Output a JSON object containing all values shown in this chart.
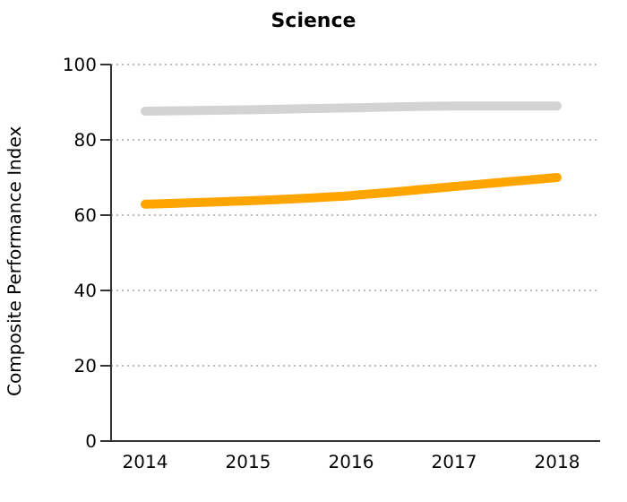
{
  "chart_data": {
    "type": "line",
    "title": "Science",
    "ylabel": "Composite Performance Index",
    "categories": [
      "2014",
      "2015",
      "2016",
      "2017",
      "2018"
    ],
    "series": [
      {
        "color": "#d3d3d3",
        "values": [
          87.6,
          88,
          88.5,
          89,
          89
        ]
      },
      {
        "color": "#ffa500",
        "values": [
          62.9,
          63.8,
          65.2,
          67.6,
          70
        ]
      }
    ],
    "ylim": [
      0,
      100
    ],
    "yticks": [
      0,
      20,
      40,
      60,
      80,
      100
    ],
    "grid": "y"
  }
}
